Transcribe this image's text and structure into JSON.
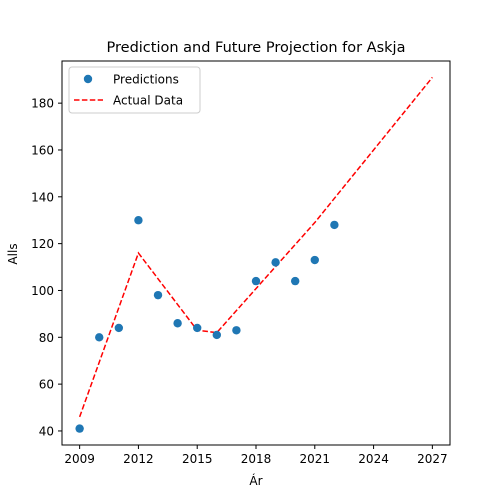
{
  "chart_data": {
    "type": "scatter",
    "title": "Prediction and Future Projection for Askja",
    "xlabel": "Ár",
    "ylabel": "Alls",
    "xlim": [
      2008.1,
      2027.9
    ],
    "ylim": [
      34,
      198
    ],
    "x_ticks": [
      2009,
      2012,
      2015,
      2018,
      2021,
      2024,
      2027
    ],
    "y_ticks": [
      40,
      60,
      80,
      100,
      120,
      140,
      160,
      180
    ],
    "grid": false,
    "legend_position": "top-left",
    "series": [
      {
        "name": "Predictions",
        "kind": "scatter",
        "color": "#1f77b4",
        "x": [
          2009,
          2010,
          2011,
          2012,
          2013,
          2014,
          2015,
          2016,
          2017,
          2018,
          2019,
          2020,
          2021,
          2022
        ],
        "y": [
          41,
          80,
          84,
          130,
          98,
          86,
          84,
          81,
          83,
          104,
          112,
          104,
          113,
          128
        ]
      },
      {
        "name": "Actual Data",
        "kind": "line",
        "style": "dashed",
        "color": "#ff0000",
        "x": [
          2009,
          2012,
          2015,
          2016,
          2021,
          2027
        ],
        "y": [
          46,
          116,
          83,
          82,
          129,
          191
        ]
      }
    ]
  }
}
